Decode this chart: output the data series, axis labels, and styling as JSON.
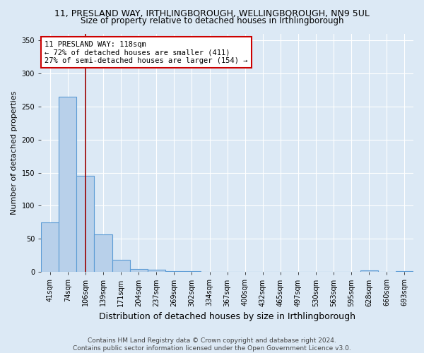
{
  "title": "11, PRESLAND WAY, IRTHLINGBOROUGH, WELLINGBOROUGH, NN9 5UL",
  "subtitle": "Size of property relative to detached houses in Irthlingborough",
  "xlabel": "Distribution of detached houses by size in Irthlingborough",
  "ylabel": "Number of detached properties",
  "categories": [
    "41sqm",
    "74sqm",
    "106sqm",
    "139sqm",
    "171sqm",
    "204sqm",
    "237sqm",
    "269sqm",
    "302sqm",
    "334sqm",
    "367sqm",
    "400sqm",
    "432sqm",
    "465sqm",
    "497sqm",
    "530sqm",
    "563sqm",
    "595sqm",
    "628sqm",
    "660sqm",
    "693sqm"
  ],
  "values": [
    75,
    265,
    145,
    57,
    18,
    5,
    3,
    1,
    1,
    0,
    0,
    0,
    0,
    0,
    0,
    0,
    0,
    0,
    2,
    0,
    1
  ],
  "bar_color": "#b8d0ea",
  "bar_edge_color": "#5b9bd5",
  "vline_x_index": 2,
  "vline_color": "#990000",
  "annotation_text": "11 PRESLAND WAY: 118sqm\n← 72% of detached houses are smaller (411)\n27% of semi-detached houses are larger (154) →",
  "annotation_box_color": "#ffffff",
  "annotation_box_edge_color": "#cc0000",
  "ylim": [
    0,
    360
  ],
  "yticks": [
    0,
    50,
    100,
    150,
    200,
    250,
    300,
    350
  ],
  "background_color": "#dce9f5",
  "plot_background_color": "#dce9f5",
  "footer_line1": "Contains HM Land Registry data © Crown copyright and database right 2024.",
  "footer_line2": "Contains public sector information licensed under the Open Government Licence v3.0.",
  "title_fontsize": 9,
  "subtitle_fontsize": 8.5,
  "xlabel_fontsize": 9,
  "ylabel_fontsize": 8,
  "tick_fontsize": 7,
  "annotation_fontsize": 7.5,
  "footer_fontsize": 6.5
}
